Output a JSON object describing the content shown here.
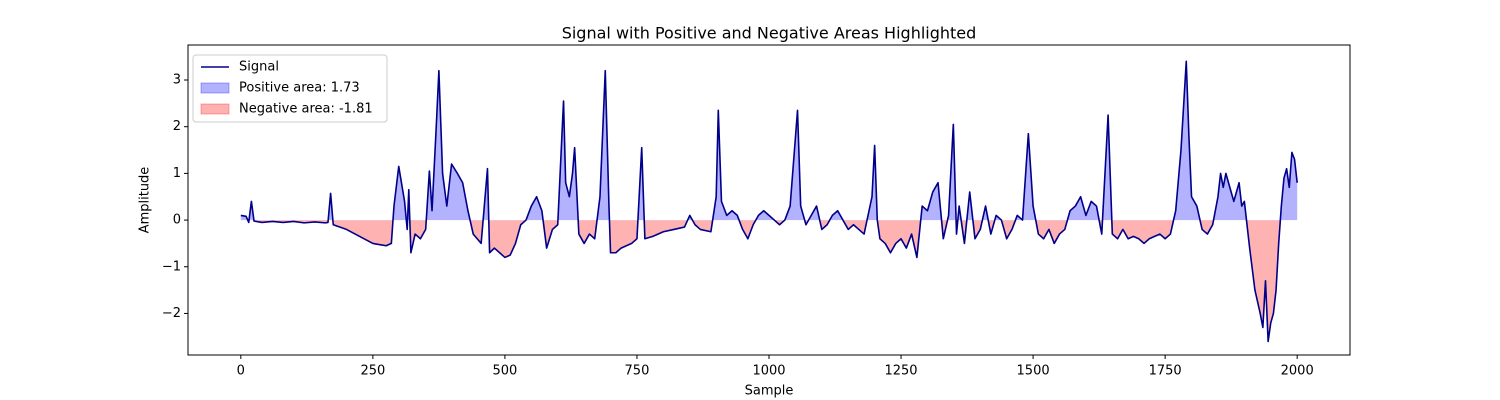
{
  "chart_data": {
    "type": "line",
    "title": "Signal with Positive and Negative Areas Highlighted",
    "x_label": "Sample",
    "y_label": "Amplitude",
    "series": [
      {
        "name": "Signal",
        "color": "#00008b",
        "x": [
          0,
          10,
          15,
          20,
          25,
          40,
          60,
          80,
          100,
          120,
          140,
          160,
          165,
          170,
          175,
          200,
          225,
          250,
          275,
          285,
          290,
          299,
          310,
          315,
          318,
          322,
          330,
          340,
          350,
          357,
          362,
          370,
          375,
          382,
          390,
          399,
          410,
          420,
          430,
          440,
          455,
          467,
          471,
          480,
          490,
          500,
          510,
          520,
          530,
          540,
          550,
          560,
          570,
          579,
          590,
          600,
          611,
          615,
          622,
          628,
          632,
          640,
          650,
          660,
          670,
          680,
          690,
          697,
          700,
          710,
          720,
          730,
          740,
          750,
          759,
          765,
          780,
          800,
          820,
          840,
          850,
          860,
          870,
          890,
          900,
          904,
          910,
          920,
          930,
          940,
          950,
          960,
          970,
          980,
          990,
          1000,
          1010,
          1020,
          1030,
          1040,
          1054,
          1060,
          1070,
          1080,
          1090,
          1100,
          1110,
          1120,
          1130,
          1140,
          1150,
          1160,
          1170,
          1180,
          1195,
          1200,
          1205,
          1210,
          1220,
          1230,
          1240,
          1250,
          1260,
          1270,
          1280,
          1290,
          1300,
          1310,
          1320,
          1330,
          1340,
          1349,
          1355,
          1360,
          1370,
          1380,
          1390,
          1400,
          1410,
          1420,
          1430,
          1440,
          1450,
          1460,
          1470,
          1480,
          1491,
          1500,
          1510,
          1520,
          1530,
          1540,
          1550,
          1560,
          1570,
          1580,
          1590,
          1600,
          1610,
          1620,
          1630,
          1642,
          1650,
          1660,
          1670,
          1680,
          1690,
          1700,
          1710,
          1720,
          1730,
          1740,
          1750,
          1760,
          1770,
          1780,
          1790,
          1795,
          1800,
          1810,
          1820,
          1830,
          1840,
          1850,
          1855,
          1860,
          1865,
          1870,
          1880,
          1890,
          1895,
          1900,
          1905,
          1910,
          1920,
          1930,
          1935,
          1940,
          1945,
          1950,
          1955,
          1960,
          1965,
          1970,
          1975,
          1980,
          1985,
          1990,
          1995,
          2000
        ],
        "values": [
          0.1,
          0.08,
          -0.05,
          0.4,
          -0.02,
          -0.05,
          -0.03,
          -0.05,
          -0.03,
          -0.06,
          -0.04,
          -0.06,
          -0.05,
          0.57,
          -0.1,
          -0.2,
          -0.35,
          -0.5,
          -0.55,
          -0.5,
          0.3,
          1.15,
          0.4,
          -0.2,
          0.65,
          -0.7,
          -0.3,
          -0.4,
          -0.2,
          1.05,
          0.2,
          2.0,
          3.2,
          1.0,
          0.3,
          1.2,
          1.0,
          0.8,
          0.2,
          -0.3,
          -0.5,
          1.1,
          -0.7,
          -0.6,
          -0.7,
          -0.8,
          -0.75,
          -0.5,
          -0.1,
          0.0,
          0.3,
          0.5,
          0.2,
          -0.6,
          -0.2,
          -0.1,
          2.55,
          0.8,
          0.5,
          1.0,
          1.55,
          -0.3,
          -0.5,
          -0.3,
          -0.4,
          0.5,
          3.2,
          0.3,
          -0.7,
          -0.7,
          -0.6,
          -0.55,
          -0.5,
          -0.4,
          1.55,
          -0.4,
          -0.35,
          -0.25,
          -0.2,
          -0.15,
          0.1,
          -0.1,
          -0.2,
          -0.25,
          0.5,
          2.35,
          0.4,
          0.1,
          0.2,
          0.1,
          -0.2,
          -0.4,
          -0.1,
          0.1,
          0.2,
          0.1,
          0.0,
          -0.1,
          0.0,
          0.3,
          2.35,
          0.3,
          -0.1,
          0.1,
          0.3,
          -0.2,
          -0.1,
          0.1,
          0.2,
          0.0,
          -0.2,
          -0.1,
          -0.2,
          -0.3,
          0.5,
          1.6,
          0.0,
          -0.4,
          -0.5,
          -0.7,
          -0.5,
          -0.4,
          -0.6,
          -0.3,
          -0.8,
          0.3,
          0.2,
          0.6,
          0.8,
          -0.4,
          0.1,
          2.05,
          -0.3,
          0.3,
          -0.5,
          0.6,
          -0.4,
          -0.2,
          0.3,
          -0.3,
          0.1,
          0.0,
          -0.4,
          -0.2,
          0.1,
          0.0,
          1.85,
          0.3,
          -0.3,
          -0.4,
          -0.2,
          -0.5,
          -0.3,
          -0.2,
          0.2,
          0.3,
          0.5,
          0.1,
          0.4,
          0.3,
          -0.3,
          2.25,
          -0.3,
          -0.4,
          -0.2,
          -0.4,
          -0.35,
          -0.4,
          -0.5,
          -0.4,
          -0.35,
          -0.3,
          -0.4,
          -0.3,
          0.2,
          1.5,
          3.4,
          1.8,
          0.5,
          0.3,
          -0.2,
          -0.3,
          -0.1,
          0.5,
          1.0,
          0.7,
          1.0,
          0.8,
          0.4,
          0.8,
          0.3,
          0.4,
          -0.1,
          -0.6,
          -1.5,
          -2.0,
          -2.3,
          -1.3,
          -2.6,
          -2.2,
          -2.0,
          -1.5,
          -0.5,
          0.3,
          0.9,
          1.1,
          0.7,
          1.45,
          1.3,
          0.8
        ]
      }
    ],
    "areas": [
      {
        "name": "Positive area: 1.73",
        "color": "#0000ff",
        "side": "positive"
      },
      {
        "name": "Negative area: -1.81",
        "color": "#ff0000",
        "side": "negative"
      }
    ],
    "area_alpha": 0.3,
    "xlim": [
      -100,
      2100
    ],
    "ylim": [
      -2.89,
      3.75
    ],
    "xticks": [
      0,
      250,
      500,
      750,
      1000,
      1250,
      1500,
      1750,
      2000
    ],
    "yticks": [
      {
        "value": -2,
        "label": "−2"
      },
      {
        "value": -1,
        "label": "−1"
      },
      0,
      1,
      2,
      3
    ],
    "legend": "upper left"
  }
}
